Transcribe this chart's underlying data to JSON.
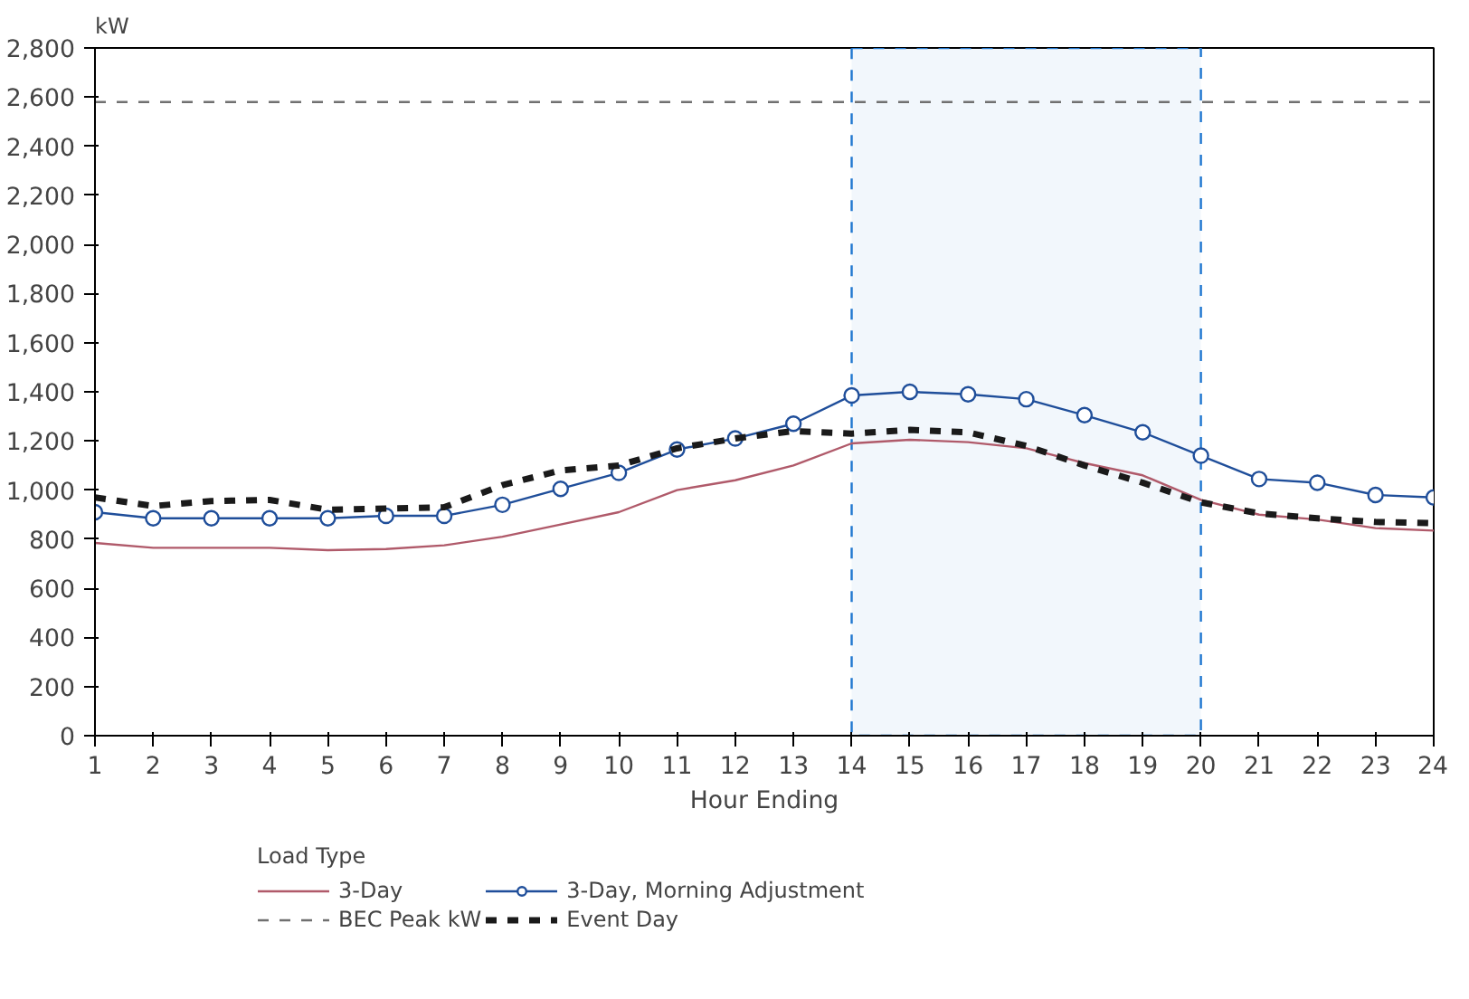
{
  "chart_data": {
    "type": "line",
    "xlabel": "Hour Ending",
    "ylabel": "kW",
    "legend_title": "Load Type",
    "legend": "bottom",
    "grid": false,
    "x": [
      1,
      2,
      3,
      4,
      5,
      6,
      7,
      8,
      9,
      10,
      11,
      12,
      13,
      14,
      15,
      16,
      17,
      18,
      19,
      20,
      21,
      22,
      23,
      24
    ],
    "xlim": [
      1,
      24
    ],
    "xticks": [
      1,
      2,
      3,
      4,
      5,
      6,
      7,
      8,
      9,
      10,
      11,
      12,
      13,
      14,
      15,
      16,
      17,
      18,
      19,
      20,
      21,
      22,
      23,
      24
    ],
    "ylim": [
      0,
      2800
    ],
    "yticks": [
      0,
      200,
      400,
      600,
      800,
      {
        "value": 1000,
        "label": "1,000"
      },
      {
        "value": 1200,
        "label": "1,200"
      },
      {
        "value": 1400,
        "label": "1,400"
      },
      {
        "value": 1600,
        "label": "1,600"
      },
      {
        "value": 1800,
        "label": "1,800"
      },
      {
        "value": 2000,
        "label": "2,000"
      },
      {
        "value": 2200,
        "label": "2,200"
      },
      {
        "value": 2400,
        "label": "2,400"
      },
      {
        "value": 2600,
        "label": "2,600"
      },
      {
        "value": 2800,
        "label": "2,800"
      }
    ],
    "bands": [
      {
        "axis": "x",
        "from": 14,
        "to": 20,
        "color": "#1f77d0"
      }
    ],
    "series": [
      {
        "name": "3-Day",
        "color": "#b05a6a",
        "line_style": "solid",
        "marker": "none",
        "values": [
          785,
          765,
          765,
          765,
          755,
          760,
          775,
          810,
          860,
          910,
          1000,
          1040,
          1100,
          1190,
          1205,
          1195,
          1170,
          1110,
          1060,
          960,
          900,
          880,
          845,
          835
        ]
      },
      {
        "name": "BEC Peak kW",
        "color": "#707070",
        "line_style": "dashed",
        "marker": "none",
        "values": [
          2580,
          2580,
          2580,
          2580,
          2580,
          2580,
          2580,
          2580,
          2580,
          2580,
          2580,
          2580,
          2580,
          2580,
          2580,
          2580,
          2580,
          2580,
          2580,
          2580,
          2580,
          2580,
          2580,
          2580
        ]
      },
      {
        "name": "3-Day, Morning Adjustment",
        "color": "#1f4e9a",
        "line_style": "solid",
        "marker": "circle",
        "values": [
          910,
          885,
          885,
          885,
          885,
          895,
          895,
          940,
          1005,
          1070,
          1165,
          1210,
          1270,
          1385,
          1400,
          1390,
          1370,
          1305,
          1235,
          1140,
          1045,
          1030,
          980,
          970
        ]
      },
      {
        "name": "Event Day",
        "color": "#1a1a1a",
        "line_style": "dashed",
        "marker": "none",
        "values": [
          970,
          935,
          955,
          960,
          920,
          925,
          930,
          1020,
          1080,
          1100,
          1170,
          1210,
          1240,
          1230,
          1245,
          1235,
          1180,
          1100,
          1030,
          950,
          905,
          885,
          870,
          865
        ]
      }
    ]
  }
}
